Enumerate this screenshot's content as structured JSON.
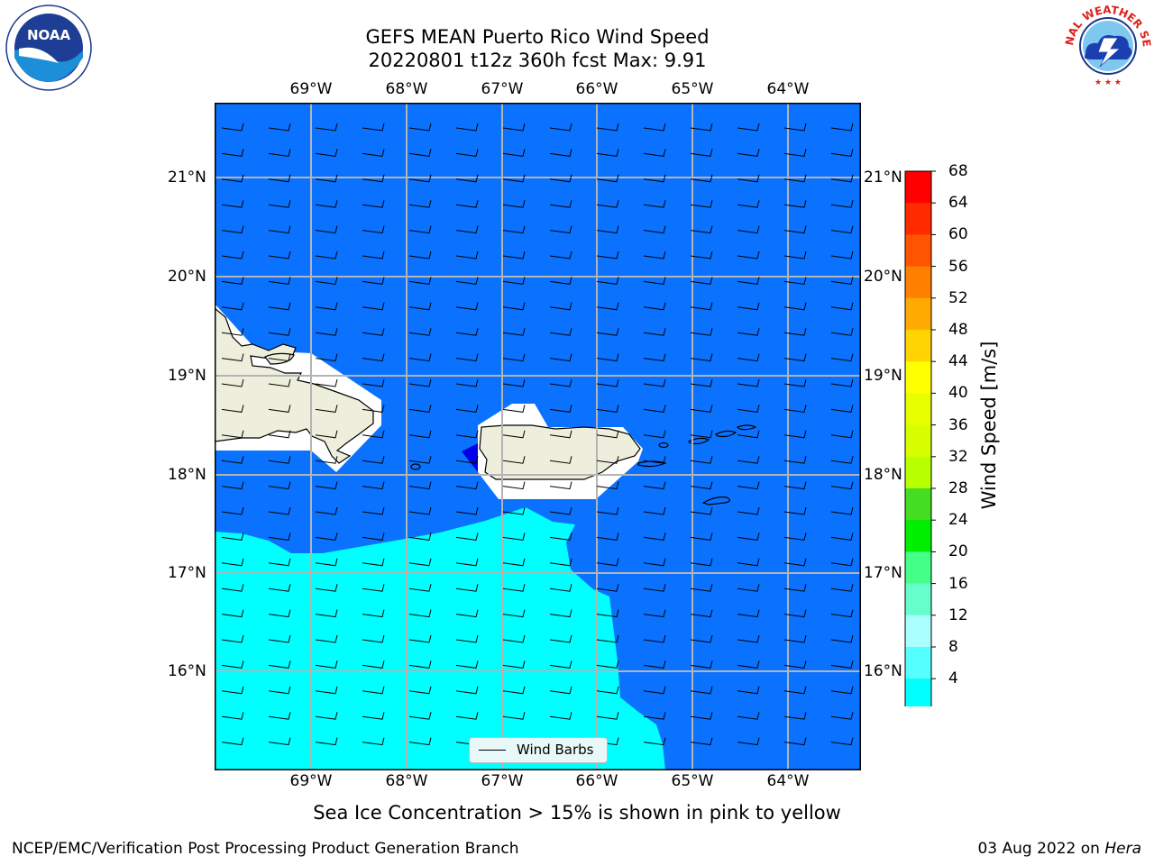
{
  "title": {
    "line1": "GEFS MEAN Puerto Rico Wind Speed",
    "line2": "20220801 t12z 360h fcst   Max: 9.91"
  },
  "map": {
    "lon_labels": [
      "69°W",
      "68°W",
      "67°W",
      "66°W",
      "65°W",
      "64°W"
    ],
    "lat_labels": [
      "21°N",
      "20°N",
      "19°N",
      "18°N",
      "17°N",
      "16°N"
    ],
    "legend_label": "Wind Barbs",
    "colors": {
      "ocean_4_8": "#0a72ff",
      "ocean_8_12": "#00ffff",
      "ocean_below_4": "#0000e8",
      "land": "#eeeedc",
      "masked": "#ffffff"
    }
  },
  "colorbar": {
    "label": "Wind Speed [m/s]",
    "ticks": [
      "68",
      "64",
      "60",
      "56",
      "52",
      "48",
      "44",
      "40",
      "36",
      "32",
      "28",
      "24",
      "20",
      "16",
      "12",
      "8",
      "4"
    ],
    "colors": [
      "#ff0000",
      "#ff2a00",
      "#ff5500",
      "#ff8000",
      "#ffaa00",
      "#ffd400",
      "#ffff00",
      "#e8ff00",
      "#d8ff00",
      "#b8ff00",
      "#44dd22",
      "#00ee00",
      "#44ff88",
      "#66ffcc",
      "#aaffff",
      "#55ffff",
      "#00ffff",
      "#0a72ff"
    ],
    "extend_color": "#0000ee"
  },
  "footer": {
    "note": "Sea Ice Concentration > 15% is shown in pink to yellow",
    "credit": "NCEP/EMC/Verification Post Processing Product Generation Branch",
    "date": "03 Aug 2022 on",
    "machine": "Hera"
  },
  "logos": {
    "left": "noaa-logo",
    "left_text": "NOAA",
    "right": "national-weather-service-logo",
    "right_text": "NATIONAL WEATHER SERVICE"
  }
}
